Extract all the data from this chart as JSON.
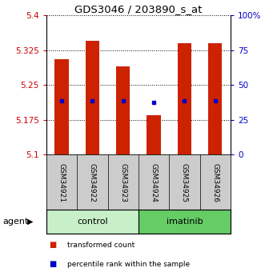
{
  "title": "GDS3046 / 203890_s_at",
  "samples": [
    "GSM34921",
    "GSM34922",
    "GSM34923",
    "GSM34924",
    "GSM34925",
    "GSM34926"
  ],
  "bar_bottoms": [
    5.1,
    5.1,
    5.1,
    5.1,
    5.1,
    5.1
  ],
  "bar_tops": [
    5.305,
    5.345,
    5.29,
    5.185,
    5.34,
    5.34
  ],
  "blue_dot_y": [
    5.215,
    5.215,
    5.215,
    5.213,
    5.215,
    5.215
  ],
  "blue_dot_standalone": [
    false,
    false,
    false,
    true,
    false,
    false
  ],
  "ylim": [
    5.1,
    5.4
  ],
  "yticks_left": [
    5.1,
    5.175,
    5.25,
    5.325,
    5.4
  ],
  "ytick_labels_left": [
    "5.1",
    "5.175",
    "5.25",
    "5.325",
    "5.4"
  ],
  "yticks_right_pct": [
    0,
    25,
    50,
    75,
    100
  ],
  "ytick_labels_right": [
    "0",
    "25",
    "50",
    "75",
    "100%"
  ],
  "groups": [
    {
      "label": "control",
      "start": 0,
      "end": 3,
      "color": "#c8f0c8"
    },
    {
      "label": "imatinib",
      "start": 3,
      "end": 6,
      "color": "#66cc66"
    }
  ],
  "bar_color": "#cc2200",
  "blue_color": "#0000cc",
  "bar_width": 0.45,
  "left_tick_color": "#cc0000",
  "right_tick_color": "#0000cc",
  "xlabel_row_bg": "#cccccc",
  "agent_label": "agent",
  "legend_items": [
    {
      "color": "#cc2200",
      "label": "transformed count"
    },
    {
      "color": "#0000cc",
      "label": "percentile rank within the sample"
    }
  ]
}
